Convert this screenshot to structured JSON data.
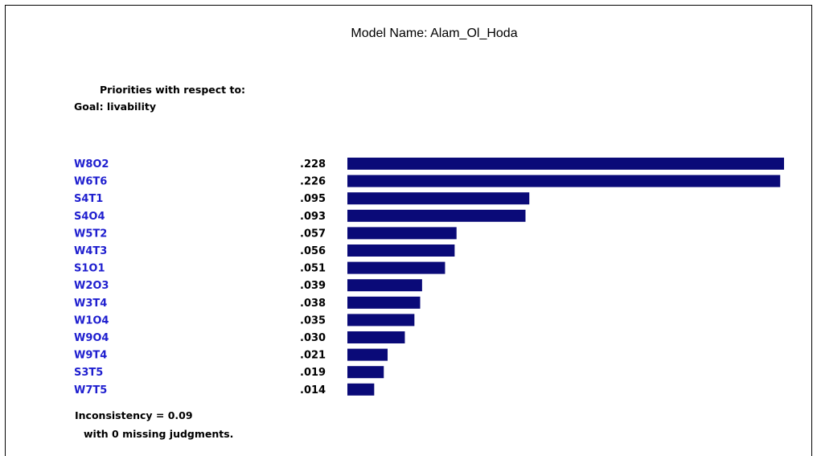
{
  "title": "Model Name: Alam_Ol_Hoda",
  "subtitle": "Priorities with respect to:",
  "goal": "Goal: livability",
  "footer": {
    "inconsistency": "Inconsistency = 0.09",
    "missing": "with 0  missing judgments."
  },
  "colors": {
    "bar": "#0a0a78",
    "label": "#1f1fcf",
    "value": "#000000"
  },
  "chart_data": {
    "type": "bar",
    "orientation": "horizontal",
    "categories": [
      "W8O2",
      "W6T6",
      "S4T1",
      "S4O4",
      "W5T2",
      "W4T3",
      "S1O1",
      "W2O3",
      "W3T4",
      "W1O4",
      "W9O4",
      "W9T4",
      "S3T5",
      "W7T5"
    ],
    "values": [
      0.228,
      0.226,
      0.095,
      0.093,
      0.057,
      0.056,
      0.051,
      0.039,
      0.038,
      0.035,
      0.03,
      0.021,
      0.019,
      0.014
    ],
    "value_labels": [
      ".228",
      ".226",
      ".095",
      ".093",
      ".057",
      ".056",
      ".051",
      ".039",
      ".038",
      ".035",
      ".030",
      ".021",
      ".019",
      ".014"
    ],
    "xlim": [
      0,
      0.228
    ]
  }
}
